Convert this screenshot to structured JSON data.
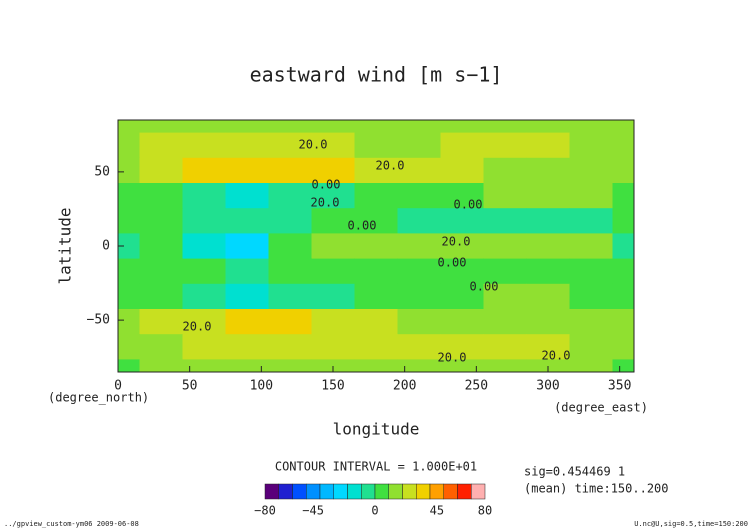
{
  "chart_data": {
    "type": "contour",
    "title": "eastward wind [m s−1]",
    "xlabel": "longitude",
    "ylabel": "latitude",
    "x_unit": "(degree_east)",
    "y_unit": "(degree_north)",
    "x": [
      0,
      30,
      60,
      90,
      120,
      150,
      180,
      210,
      240,
      270,
      300,
      330,
      360
    ],
    "y": [
      85,
      68,
      51,
      34,
      17,
      0,
      -17,
      -34,
      -51,
      -68,
      -85
    ],
    "z": [
      [
        12,
        12,
        12,
        14,
        14,
        14,
        14,
        14,
        14,
        14,
        14,
        12,
        12
      ],
      [
        18,
        20,
        22,
        24,
        22,
        20,
        18,
        18,
        20,
        20,
        20,
        18,
        18
      ],
      [
        15,
        25,
        32,
        35,
        35,
        30,
        22,
        20,
        20,
        18,
        15,
        15,
        15
      ],
      [
        5,
        2,
        -5,
        -15,
        -10,
        -5,
        5,
        5,
        8,
        10,
        12,
        10,
        5
      ],
      [
        5,
        0,
        -5,
        -5,
        -5,
        0,
        0,
        -2,
        -5,
        -10,
        -10,
        -8,
        5
      ],
      [
        -5,
        5,
        -15,
        -25,
        5,
        15,
        15,
        15,
        10,
        10,
        10,
        15,
        -5
      ],
      [
        5,
        5,
        0,
        -5,
        0,
        0,
        5,
        5,
        0,
        0,
        0,
        5,
        5
      ],
      [
        5,
        0,
        -10,
        -15,
        -10,
        -5,
        5,
        5,
        8,
        10,
        10,
        8,
        5
      ],
      [
        18,
        20,
        25,
        30,
        32,
        25,
        20,
        18,
        15,
        15,
        18,
        18,
        18
      ],
      [
        15,
        18,
        20,
        22,
        25,
        22,
        20,
        22,
        22,
        20,
        20,
        18,
        15
      ],
      [
        5,
        12,
        14,
        14,
        14,
        14,
        14,
        14,
        14,
        14,
        14,
        10,
        5
      ]
    ],
    "xlim": [
      0,
      360
    ],
    "ylim": [
      -85,
      85
    ],
    "xticks": [
      0,
      50,
      100,
      150,
      200,
      250,
      300,
      350
    ],
    "yticks": [
      {
        "value": -50,
        "label": "−50"
      },
      0,
      50
    ],
    "levels": [
      -80,
      -70,
      -60,
      -50,
      -40,
      -30,
      -20,
      -10,
      0,
      10,
      20,
      30,
      40,
      50,
      60,
      70,
      80
    ],
    "colors": [
      "#5a007a",
      "#2020d0",
      "#0050ff",
      "#0090ff",
      "#00b8ff",
      "#00d8ff",
      "#00e0d0",
      "#20e090",
      "#40e040",
      "#90e030",
      "#c8e020",
      "#f0d000",
      "#ffa000",
      "#ff6000",
      "#ff2000",
      "#ffb0b0"
    ],
    "colorbar_ticks": [
      {
        "value": -80,
        "label": "−80"
      },
      {
        "value": -45,
        "label": "−45"
      },
      0,
      45,
      80
    ],
    "contour_labels": [
      "20.0",
      "20.0",
      "0.00",
      "20.0",
      "0.00",
      "0.00",
      "20.0",
      "0.00",
      "0.00",
      "20.0",
      "20.0",
      "20.0"
    ],
    "contour_interval": "CONTOUR INTERVAL = 1.000E+01",
    "info": [
      "sig=0.454469 1",
      "(mean) time:150..200"
    ],
    "footer_left": "../gpview_custom-ym06  2009-06-08",
    "footer_right": "U.nc@U,sig=0.5,time=150:200"
  }
}
